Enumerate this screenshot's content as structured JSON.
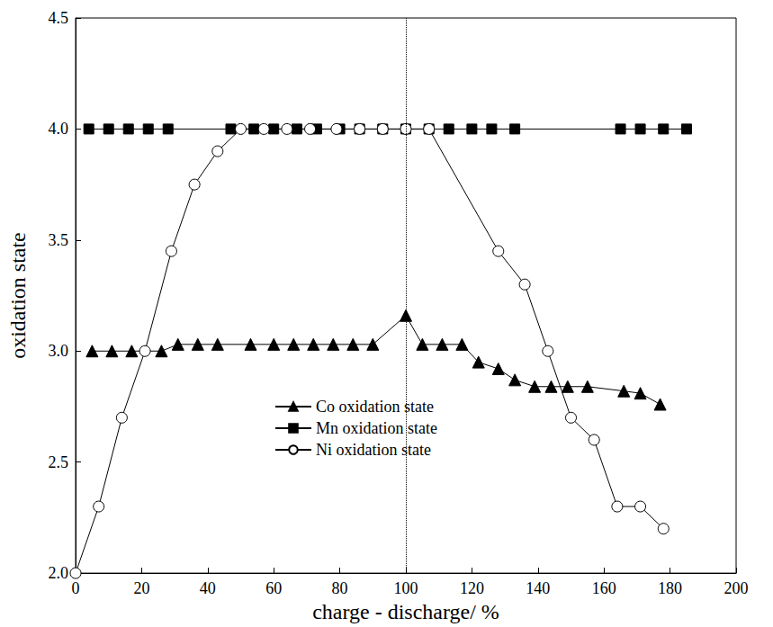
{
  "chart_data": {
    "type": "line",
    "x_label": "charge - discharge/ %",
    "y_label": "oxidation state",
    "xlim": [
      0,
      200
    ],
    "xticks": [
      0,
      20,
      40,
      60,
      80,
      100,
      120,
      140,
      160,
      180,
      200
    ],
    "ylim": [
      2,
      4.5
    ],
    "yticks": [
      {
        "value": 2,
        "label": "2.0"
      },
      {
        "value": 2.5,
        "label": "2.5"
      },
      {
        "value": 3,
        "label": "3.0"
      },
      {
        "value": 3.5,
        "label": "3.5"
      },
      {
        "value": 4,
        "label": "4.0"
      },
      {
        "value": 4.5,
        "label": "4.5"
      }
    ],
    "grid": false,
    "legend": "lower center",
    "reference_lines": [
      {
        "x": 100,
        "line_style": "dotted"
      }
    ],
    "series": [
      {
        "name": "Co oxidation state",
        "color": "#000000",
        "marker": "triangle",
        "line_style": "solid",
        "x": [
          5,
          11,
          17,
          26,
          31,
          37,
          43,
          53,
          60,
          66,
          72,
          78,
          84,
          90,
          100,
          105,
          111,
          117,
          122,
          128,
          133,
          139,
          144,
          149,
          155,
          166,
          171,
          177
        ],
        "values": [
          3.0,
          3.0,
          3.0,
          3.0,
          3.03,
          3.03,
          3.03,
          3.03,
          3.03,
          3.03,
          3.03,
          3.03,
          3.03,
          3.03,
          3.16,
          3.03,
          3.03,
          3.03,
          2.95,
          2.92,
          2.87,
          2.84,
          2.84,
          2.84,
          2.84,
          2.82,
          2.81,
          2.76
        ]
      },
      {
        "name": "Mn oxidation state",
        "color": "#000000",
        "marker": "square",
        "line_style": "solid",
        "x": [
          4,
          10,
          16,
          22,
          28,
          47,
          54,
          60,
          67,
          73,
          80,
          86,
          93,
          100,
          107,
          113,
          120,
          126,
          133,
          165,
          171,
          178,
          185
        ],
        "values": [
          4.0,
          4.0,
          4.0,
          4.0,
          4.0,
          4.0,
          4.0,
          4.0,
          4.0,
          4.0,
          4.0,
          4.0,
          4.0,
          4.0,
          4.0,
          4.0,
          4.0,
          4.0,
          4.0,
          4.0,
          4.0,
          4.0,
          4.0
        ]
      },
      {
        "name": "Ni oxidation state",
        "color": "#000000",
        "marker": "open_circle",
        "line_style": "solid",
        "x": [
          0,
          7,
          14,
          21,
          29,
          36,
          43,
          50,
          57,
          64,
          71,
          79,
          86,
          93,
          100,
          107,
          128,
          136,
          143,
          150,
          157,
          164,
          171,
          178
        ],
        "values": [
          2.0,
          2.3,
          2.7,
          3.0,
          3.45,
          3.75,
          3.9,
          4.0,
          4.0,
          4.0,
          4.0,
          4.0,
          4.0,
          4.0,
          4.0,
          4.0,
          3.45,
          3.3,
          3.0,
          2.7,
          2.6,
          2.3,
          2.3,
          2.2
        ]
      }
    ]
  }
}
